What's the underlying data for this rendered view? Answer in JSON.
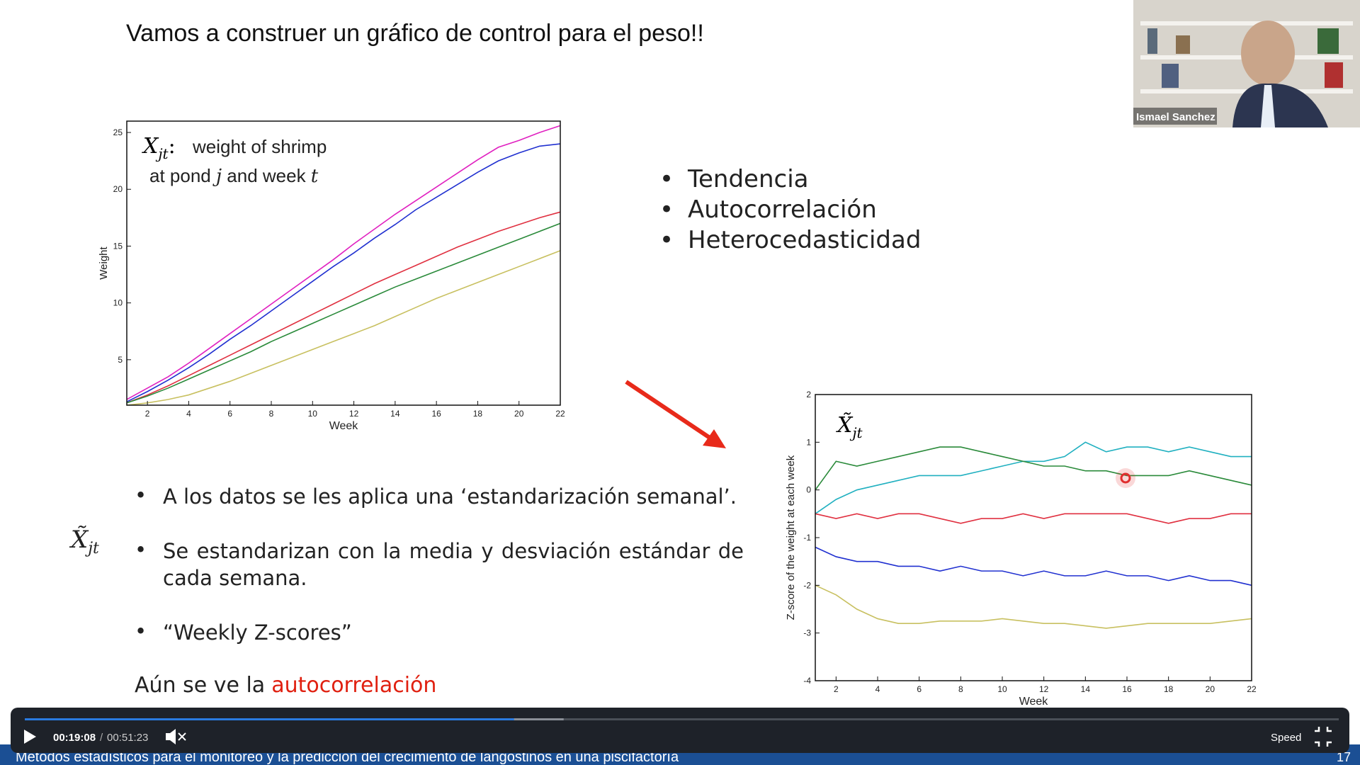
{
  "slide": {
    "title": "Vamos a construer un gráfico de control para el peso!!",
    "right_bullets": [
      "Tendencia",
      "Autocorrelación",
      "Heterocedasticidad"
    ],
    "left_bullets": [
      "A los datos se les aplica una ‘estandarización semanal’.",
      "Se estandarizan con la media y desviación estándar de cada semana.",
      "“Weekly Z-scores”"
    ],
    "side_symbol": {
      "symbol": "X̃",
      "subscript": "jt"
    },
    "footer_note": {
      "text": "Aún se ve la",
      "highlight": "autocorrelación"
    }
  },
  "chart_data": [
    {
      "type": "line",
      "annotation": {
        "symbol": "X",
        "subscript": "jt",
        "separator": ":",
        "line1": "weight of shrimp",
        "line2": [
          "at pond ",
          "j",
          " and week ",
          "t"
        ]
      },
      "xlabel": "Week",
      "ylabel": "Weight",
      "x": [
        1,
        2,
        3,
        4,
        5,
        6,
        7,
        8,
        9,
        10,
        11,
        12,
        13,
        14,
        15,
        16,
        17,
        18,
        19,
        20,
        21,
        22
      ],
      "xlim": [
        1,
        22
      ],
      "xticks": [
        2,
        4,
        6,
        8,
        10,
        12,
        14,
        16,
        18,
        20,
        22
      ],
      "ylim": [
        1,
        26
      ],
      "yticks": [
        5,
        10,
        15,
        20,
        25
      ],
      "series": [
        {
          "color": "#e020c0",
          "values": [
            1.5,
            2.5,
            3.5,
            4.7,
            6,
            7.3,
            8.6,
            9.9,
            11.2,
            12.5,
            13.8,
            15.2,
            16.5,
            17.8,
            19,
            20.2,
            21.4,
            22.6,
            23.7,
            24.3,
            25,
            25.6
          ]
        },
        {
          "color": "#2030d0",
          "values": [
            1.3,
            2.2,
            3.2,
            4.3,
            5.5,
            6.8,
            8,
            9.3,
            10.6,
            11.9,
            13.2,
            14.4,
            15.7,
            16.9,
            18.2,
            19.3,
            20.4,
            21.5,
            22.5,
            23.2,
            23.8,
            24
          ]
        },
        {
          "color": "#e03040",
          "values": [
            1.2,
            1.9,
            2.7,
            3.6,
            4.5,
            5.4,
            6.3,
            7.2,
            8.1,
            9,
            9.9,
            10.8,
            11.7,
            12.5,
            13.3,
            14.1,
            14.9,
            15.6,
            16.3,
            16.9,
            17.5,
            18
          ]
        },
        {
          "color": "#2a8a3a",
          "values": [
            1.2,
            1.8,
            2.5,
            3.3,
            4.1,
            4.9,
            5.7,
            6.6,
            7.4,
            8.2,
            9,
            9.8,
            10.6,
            11.4,
            12.1,
            12.8,
            13.5,
            14.2,
            14.9,
            15.6,
            16.3,
            17
          ]
        },
        {
          "color": "#c8c060",
          "values": [
            1,
            1.2,
            1.5,
            1.9,
            2.5,
            3.1,
            3.8,
            4.5,
            5.2,
            5.9,
            6.6,
            7.3,
            8,
            8.8,
            9.6,
            10.4,
            11.1,
            11.8,
            12.5,
            13.2,
            13.9,
            14.6
          ]
        }
      ]
    },
    {
      "type": "line",
      "annotation": {
        "symbol": "X̃",
        "subscript": "jt"
      },
      "xlabel": "Week",
      "ylabel": "Z-score of the weight at each week",
      "x": [
        1,
        2,
        3,
        4,
        5,
        6,
        7,
        8,
        9,
        10,
        11,
        12,
        13,
        14,
        15,
        16,
        17,
        18,
        19,
        20,
        21,
        22
      ],
      "xlim": [
        1,
        22
      ],
      "xticks": [
        2,
        4,
        6,
        8,
        10,
        12,
        14,
        16,
        18,
        20,
        22
      ],
      "ylim": [
        -4,
        2
      ],
      "yticks": [
        -4,
        -3,
        -2,
        -1,
        0,
        1,
        2
      ],
      "series": [
        {
          "color": "#20b0c0",
          "values": [
            -0.5,
            -0.2,
            0,
            0.1,
            0.2,
            0.3,
            0.3,
            0.3,
            0.4,
            0.5,
            0.6,
            0.6,
            0.7,
            1,
            0.8,
            0.9,
            0.9,
            0.8,
            0.9,
            0.8,
            0.7,
            0.7
          ]
        },
        {
          "color": "#2a8a3a",
          "values": [
            0,
            0.6,
            0.5,
            0.6,
            0.7,
            0.8,
            0.9,
            0.9,
            0.8,
            0.7,
            0.6,
            0.5,
            0.5,
            0.4,
            0.4,
            0.3,
            0.3,
            0.3,
            0.4,
            0.3,
            0.2,
            0.1
          ]
        },
        {
          "color": "#e03040",
          "values": [
            -0.5,
            -0.6,
            -0.5,
            -0.6,
            -0.5,
            -0.5,
            -0.6,
            -0.7,
            -0.6,
            -0.6,
            -0.5,
            -0.6,
            -0.5,
            -0.5,
            -0.5,
            -0.5,
            -0.6,
            -0.7,
            -0.6,
            -0.6,
            -0.5,
            -0.5
          ]
        },
        {
          "color": "#2030d0",
          "values": [
            -1.2,
            -1.4,
            -1.5,
            -1.5,
            -1.6,
            -1.6,
            -1.7,
            -1.6,
            -1.7,
            -1.7,
            -1.8,
            -1.7,
            -1.8,
            -1.8,
            -1.7,
            -1.8,
            -1.8,
            -1.9,
            -1.8,
            -1.9,
            -1.9,
            -2
          ]
        },
        {
          "color": "#c8c060",
          "values": [
            -2,
            -2.2,
            -2.5,
            -2.7,
            -2.8,
            -2.8,
            -2.75,
            -2.75,
            -2.75,
            -2.7,
            -2.75,
            -2.8,
            -2.8,
            -2.85,
            -2.9,
            -2.85,
            -2.8,
            -2.8,
            -2.8,
            -2.8,
            -2.75,
            -2.7
          ]
        }
      ]
    }
  ],
  "presenter": {
    "name": "Ismael Sanchez"
  },
  "player": {
    "current_time": "00:19:08",
    "separator": "/",
    "duration": "00:51:23",
    "speed_label": "Speed"
  },
  "course_bar": {
    "title": "Métodos estadísticos para el monitoreo y la predicción del crecimiento de langostinos en una piscifactoría",
    "page": "17"
  }
}
